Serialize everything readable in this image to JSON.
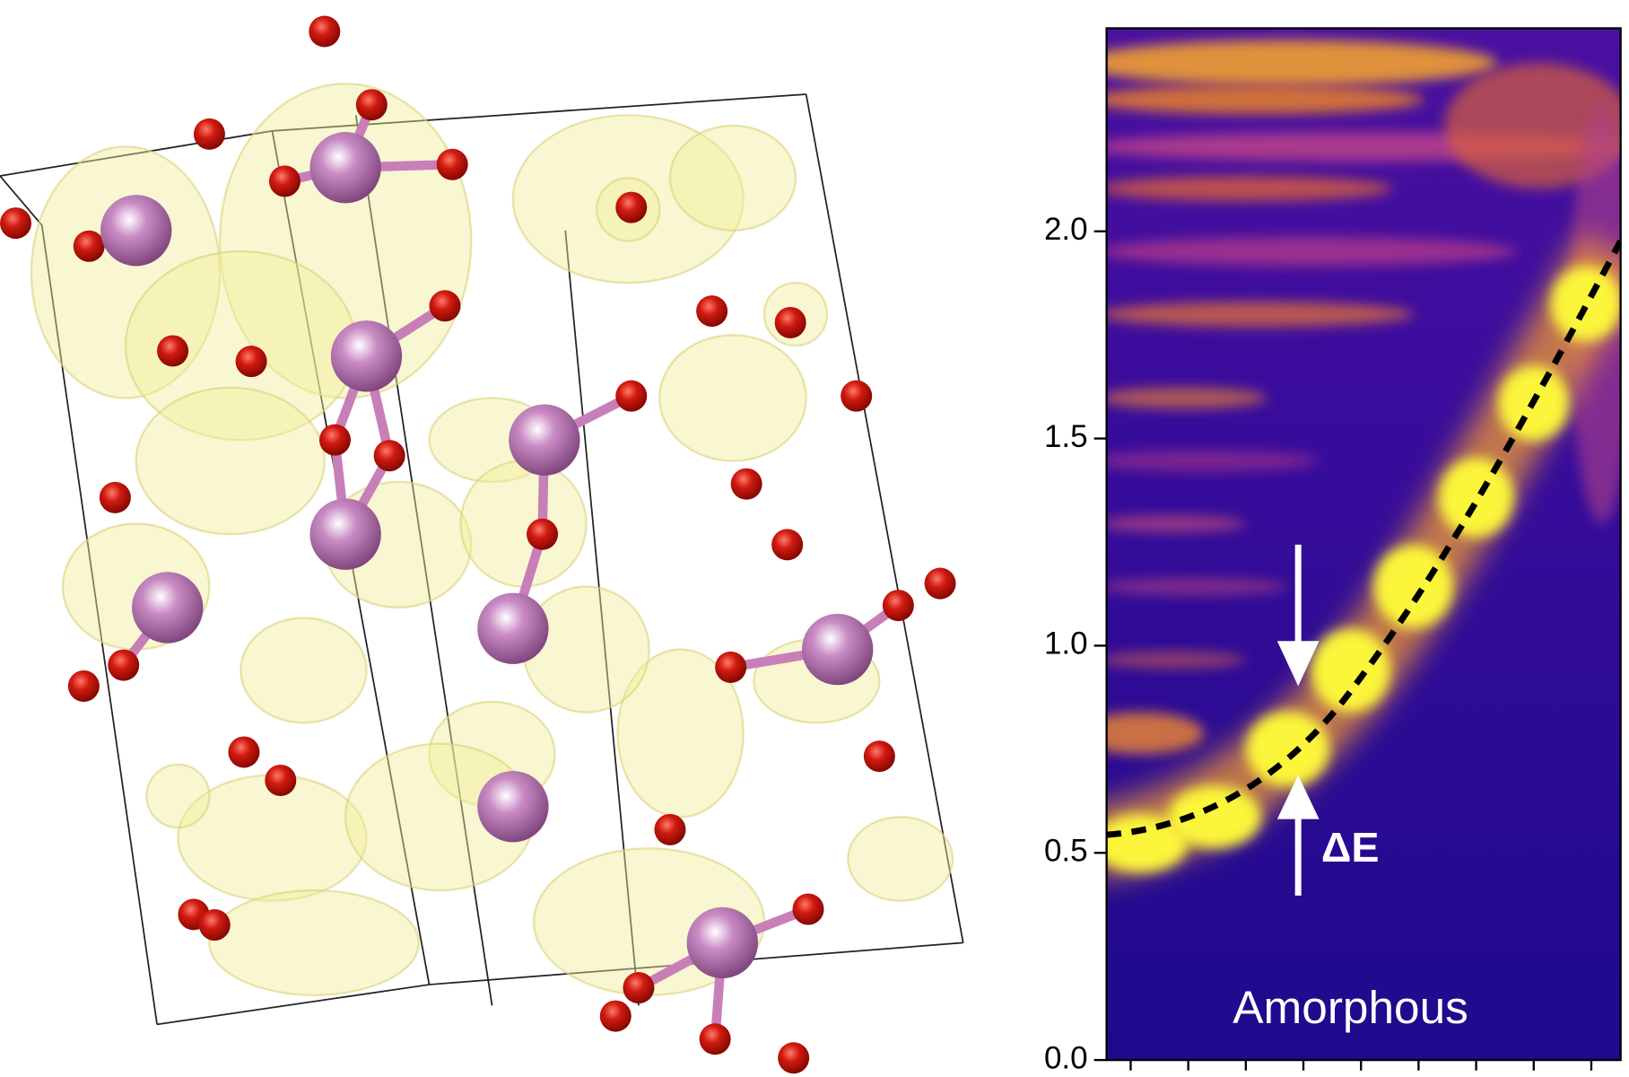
{
  "chart_data": {
    "type": "heatmap",
    "ylim": [
      0,
      2.49
    ],
    "yticks": [
      {
        "value": 0,
        "label": "0.0"
      },
      0.5,
      {
        "value": 1,
        "label": "1.0"
      },
      1.5,
      {
        "value": 2,
        "label": "2.0"
      }
    ],
    "annotations": [
      "ΔE",
      "Amorphous"
    ]
  }
}
